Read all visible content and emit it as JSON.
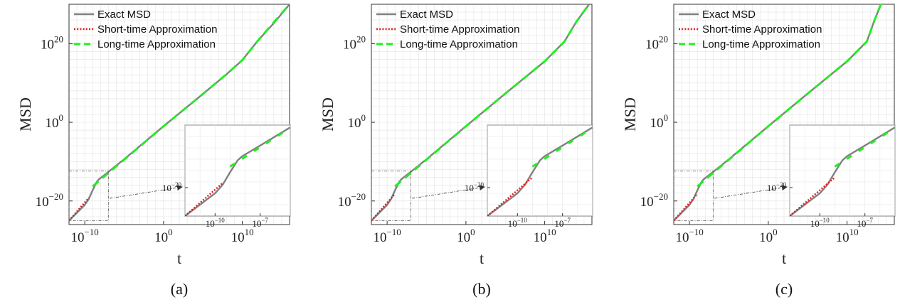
{
  "figure": {
    "panels": [
      {
        "caption": "(a)",
        "xlabel": "t",
        "ylabel": "MSD"
      },
      {
        "caption": "(b)",
        "xlabel": "t",
        "ylabel": "MSD"
      },
      {
        "caption": "(c)",
        "xlabel": "t",
        "ylabel": "MSD"
      }
    ]
  },
  "colors": {
    "exact": "#808080",
    "short": "#e41a1c",
    "long": "#22ee22",
    "grid": "#e6e6e6",
    "axis": "#333333"
  },
  "chart_data": [
    {
      "type": "line",
      "title": "",
      "caption": "(a)",
      "xlabel": "t",
      "ylabel": "MSD",
      "xscale": "log",
      "yscale": "log",
      "xlim_log10": [
        -12,
        16
      ],
      "ylim_log10": [
        -26,
        30
      ],
      "grid": true,
      "legend_position": "top-left",
      "x_ticks": [
        {
          "exp": -10,
          "label": "10^{-10}"
        },
        {
          "exp": 0,
          "label": "10^{0}"
        },
        {
          "exp": 10,
          "label": "10^{10}"
        }
      ],
      "y_ticks": [
        {
          "exp": -20,
          "label": "10^{-20}"
        },
        {
          "exp": 0,
          "label": "10^{0}"
        },
        {
          "exp": 20,
          "label": "10^{20}"
        }
      ],
      "series": [
        {
          "name": "Exact MSD",
          "style": "solid",
          "color_key": "exact",
          "log_points": [
            [
              -12,
              -25
            ],
            [
              -10,
              -21
            ],
            [
              -9.5,
              -19.5
            ],
            [
              -9,
              -17.3
            ],
            [
              -8.5,
              -15.2
            ],
            [
              -8.2,
              -14.5
            ],
            [
              -7,
              -12.6
            ],
            [
              -5,
              -9.4
            ],
            [
              0,
              -1
            ],
            [
              5,
              7.2
            ],
            [
              8,
              12.2
            ],
            [
              9,
              14
            ],
            [
              10,
              15.8
            ],
            [
              11,
              18.3
            ],
            [
              12,
              20.8
            ],
            [
              14,
              25.2
            ],
            [
              16,
              30
            ]
          ]
        },
        {
          "name": "Short-time Approximation",
          "style": "dotted",
          "color_key": "short",
          "log_points": [
            [
              -12,
              -25
            ],
            [
              -9.5,
              -19.2
            ]
          ]
        },
        {
          "name": "Long-time Approximation",
          "style": "dashed",
          "color_key": "long",
          "log_points": [
            [
              -9,
              -16.3
            ],
            [
              0,
              -1
            ],
            [
              5,
              7.2
            ],
            [
              8,
              12.2
            ],
            [
              10,
              15.8
            ],
            [
              12,
              20.8
            ],
            [
              16,
              30
            ]
          ]
        }
      ],
      "inset": {
        "xlim_log10": [
          -12,
          -5
        ],
        "ylim_log10": [
          -25,
          -9
        ],
        "x_ticks": [
          {
            "exp": -10,
            "label": "10^{-10}"
          },
          {
            "exp": -7,
            "label": "10^{-7}"
          }
        ],
        "y_ticks": [
          {
            "exp": -20,
            "label": "10^{-20}"
          }
        ]
      }
    },
    {
      "type": "line",
      "title": "",
      "caption": "(b)",
      "xlabel": "t",
      "ylabel": "MSD",
      "xscale": "log",
      "yscale": "log",
      "xlim_log10": [
        -12,
        16
      ],
      "ylim_log10": [
        -26,
        30
      ],
      "grid": true,
      "legend_position": "top-left",
      "x_ticks": [
        {
          "exp": -10,
          "label": "10^{-10}"
        },
        {
          "exp": 0,
          "label": "10^{0}"
        },
        {
          "exp": 10,
          "label": "10^{10}"
        }
      ],
      "y_ticks": [
        {
          "exp": -20,
          "label": "10^{-20}"
        },
        {
          "exp": 0,
          "label": "10^{0}"
        },
        {
          "exp": 20,
          "label": "10^{20}"
        }
      ],
      "series": [
        {
          "name": "Exact MSD",
          "style": "solid",
          "color_key": "exact",
          "log_points": [
            [
              -12,
              -25
            ],
            [
              -10,
              -21
            ],
            [
              -9.5,
              -19.5
            ],
            [
              -9,
              -17.3
            ],
            [
              -8.5,
              -15.2
            ],
            [
              -8.2,
              -14.5
            ],
            [
              -7,
              -12.6
            ],
            [
              -5,
              -9.4
            ],
            [
              0,
              -1
            ],
            [
              5,
              7.3
            ],
            [
              10,
              15.5
            ],
            [
              12,
              19.5
            ],
            [
              12.5,
              20.5
            ],
            [
              14,
              25.5
            ],
            [
              16,
              31
            ]
          ]
        },
        {
          "name": "Short-time Approximation",
          "style": "dotted",
          "color_key": "short",
          "log_points": [
            [
              -12,
              -25
            ],
            [
              -9,
              -18.2
            ]
          ]
        },
        {
          "name": "Long-time Approximation",
          "style": "dashed",
          "color_key": "long",
          "log_points": [
            [
              -9,
              -16.3
            ],
            [
              0,
              -1
            ],
            [
              5,
              7.3
            ],
            [
              10,
              15.5
            ],
            [
              12,
              19.5
            ],
            [
              12.5,
              20.5
            ],
            [
              14,
              25.5
            ],
            [
              16,
              31
            ]
          ]
        }
      ],
      "inset": {
        "xlim_log10": [
          -12,
          -5
        ],
        "ylim_log10": [
          -25,
          -9
        ],
        "x_ticks": [
          {
            "exp": -10,
            "label": "10^{-10}"
          },
          {
            "exp": -7,
            "label": "10^{-7}"
          }
        ],
        "y_ticks": [
          {
            "exp": -20,
            "label": "10^{-20}"
          }
        ]
      }
    },
    {
      "type": "line",
      "title": "",
      "caption": "(c)",
      "xlabel": "t",
      "ylabel": "MSD",
      "xscale": "log",
      "yscale": "log",
      "xlim_log10": [
        -12,
        16
      ],
      "ylim_log10": [
        -26,
        30
      ],
      "grid": true,
      "legend_position": "top-left",
      "x_ticks": [
        {
          "exp": -10,
          "label": "10^{-10}"
        },
        {
          "exp": 0,
          "label": "10^{0}"
        },
        {
          "exp": 10,
          "label": "10^{10}"
        }
      ],
      "y_ticks": [
        {
          "exp": -20,
          "label": "10^{-20}"
        },
        {
          "exp": 0,
          "label": "10^{0}"
        },
        {
          "exp": 20,
          "label": "10^{20}"
        }
      ],
      "series": [
        {
          "name": "Exact MSD",
          "style": "solid",
          "color_key": "exact",
          "log_points": [
            [
              -12,
              -25
            ],
            [
              -10,
              -21
            ],
            [
              -9.5,
              -19.5
            ],
            [
              -9,
              -17.3
            ],
            [
              -8.5,
              -15.2
            ],
            [
              -8.2,
              -14.5
            ],
            [
              -7,
              -12.6
            ],
            [
              -5,
              -9.4
            ],
            [
              0,
              -1
            ],
            [
              5,
              7.3
            ],
            [
              10,
              15.5
            ],
            [
              12,
              19.5
            ],
            [
              12.5,
              20.5
            ],
            [
              13.5,
              26
            ],
            [
              14.5,
              31
            ]
          ]
        },
        {
          "name": "Short-time Approximation",
          "style": "dotted",
          "color_key": "short",
          "log_points": [
            [
              -12,
              -25
            ],
            [
              -9,
              -18.2
            ]
          ]
        },
        {
          "name": "Long-time Approximation",
          "style": "dashed",
          "color_key": "long",
          "log_points": [
            [
              -9,
              -16.3
            ],
            [
              0,
              -1
            ],
            [
              5,
              7.3
            ],
            [
              10,
              15.5
            ],
            [
              12,
              19.5
            ],
            [
              12.5,
              20.5
            ],
            [
              13.5,
              26
            ],
            [
              14.5,
              31
            ]
          ]
        }
      ],
      "inset": {
        "xlim_log10": [
          -12,
          -5
        ],
        "ylim_log10": [
          -25,
          -9
        ],
        "x_ticks": [
          {
            "exp": -10,
            "label": "10^{-10}"
          },
          {
            "exp": -7,
            "label": "10^{-7}"
          }
        ],
        "y_ticks": [
          {
            "exp": -20,
            "label": "10^{-20}"
          }
        ]
      }
    }
  ]
}
